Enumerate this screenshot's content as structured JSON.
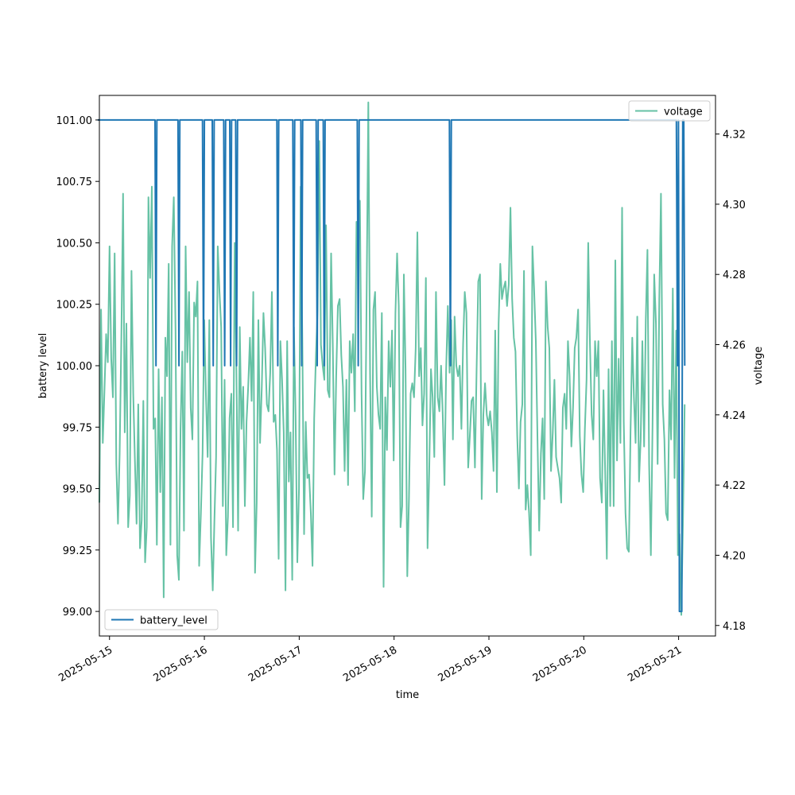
{
  "chart_data": {
    "type": "line",
    "xlabel": "time",
    "ylabel": "battery level",
    "y2label": "voltage",
    "x_range": [
      "2025-05-14T21:26:00",
      "2025-05-21T09:20:00"
    ],
    "x_ticks": [
      "2025-05-15",
      "2025-05-16",
      "2025-05-17",
      "2025-05-18",
      "2025-05-19",
      "2025-05-20",
      "2025-05-21"
    ],
    "ylim": [
      98.9,
      101.1
    ],
    "y_ticks": [
      "99.00",
      "99.25",
      "99.50",
      "99.75",
      "100.00",
      "100.25",
      "100.50",
      "100.75",
      "101.00"
    ],
    "y2lim": [
      4.177,
      4.331
    ],
    "y2_ticks": [
      "4.18",
      "4.20",
      "4.22",
      "4.24",
      "4.26",
      "4.28",
      "4.30",
      "4.32"
    ],
    "grid": false,
    "series": [
      {
        "name": "battery_level",
        "axis": "left",
        "color": "#1f77b4",
        "legend_position": "lower-left",
        "x": [
          "2025-05-14T21:00:00",
          "2025-05-15T11:31:00",
          "2025-05-15T11:45:00",
          "2025-05-15T11:59:00",
          "2025-05-15T13:29:00",
          "2025-05-15T17:20:00",
          "2025-05-15T17:34:00",
          "2025-05-15T17:48:00",
          "2025-05-15T23:32:00",
          "2025-05-15T23:47:00",
          "2025-05-16T00:01:00",
          "2025-05-16T02:00:00",
          "2025-05-16T02:14:00",
          "2025-05-16T02:29:00",
          "2025-05-16T04:54:00",
          "2025-05-16T05:08:00",
          "2025-05-16T05:23:00",
          "2025-05-16T06:25:00",
          "2025-05-16T06:39:00",
          "2025-05-16T06:53:00",
          "2025-05-16T07:55:00",
          "2025-05-16T08:09:00",
          "2025-05-16T08:24:00",
          "2025-05-16T18:21:00",
          "2025-05-16T18:35:00",
          "2025-05-16T18:49:00",
          "2025-05-16T22:23:00",
          "2025-05-16T22:37:00",
          "2025-05-16T22:52:00",
          "2025-05-17T00:24:00",
          "2025-05-17T00:38:00",
          "2025-05-17T00:52:00",
          "2025-05-17T04:18:00",
          "2025-05-17T04:33:00",
          "2025-05-17T04:47:00",
          "2025-05-17T06:05:00",
          "2025-05-17T06:19:00",
          "2025-05-17T06:33:00",
          "2025-05-17T14:42:00",
          "2025-05-17T14:56:00",
          "2025-05-17T15:10:00",
          "2025-05-18T14:00:00",
          "2025-05-18T14:15:00",
          "2025-05-18T14:29:00",
          "2025-05-20T23:26:00",
          "2025-05-20T23:42:00",
          "2025-05-20T23:57:00",
          "2025-05-21T00:12:00",
          "2025-05-21T00:48:00",
          "2025-05-21T01:03:00",
          "2025-05-21T01:18:00",
          "2025-05-21T01:33:00"
        ],
        "values": [
          101,
          101,
          100,
          101,
          101,
          101,
          100,
          101,
          101,
          100,
          101,
          101,
          100,
          101,
          101,
          100,
          101,
          101,
          100,
          101,
          101,
          100,
          101,
          101,
          100,
          101,
          101,
          100,
          101,
          101,
          100,
          101,
          101,
          100,
          101,
          101,
          100,
          101,
          101,
          100,
          101,
          101,
          100,
          101,
          101,
          100,
          101,
          99,
          99,
          101,
          101,
          100
        ]
      },
      {
        "name": "voltage",
        "axis": "right",
        "color": "#66c2a5",
        "legend_position": "upper-right",
        "x_start": "2025-05-14T21:26:00",
        "x_end": "2025-05-21T01:32:00",
        "values": [
          4.215,
          4.27,
          4.232,
          4.247,
          4.263,
          4.255,
          4.288,
          4.256,
          4.245,
          4.286,
          4.226,
          4.209,
          4.229,
          4.263,
          4.303,
          4.235,
          4.266,
          4.208,
          4.217,
          4.281,
          4.246,
          4.227,
          4.209,
          4.243,
          4.202,
          4.21,
          4.244,
          4.198,
          4.208,
          4.302,
          4.279,
          4.305,
          4.236,
          4.239,
          4.203,
          4.253,
          4.218,
          4.245,
          4.188,
          4.262,
          4.251,
          4.283,
          4.203,
          4.288,
          4.302,
          4.264,
          4.2,
          4.193,
          4.236,
          4.258,
          4.207,
          4.288,
          4.255,
          4.275,
          4.242,
          4.233,
          4.272,
          4.268,
          4.278,
          4.197,
          4.212,
          4.229,
          4.267,
          4.245,
          4.228,
          4.267,
          4.205,
          4.19,
          4.21,
          4.228,
          4.288,
          4.275,
          4.265,
          4.214,
          4.25,
          4.2,
          4.211,
          4.239,
          4.246,
          4.208,
          4.289,
          4.252,
          4.207,
          4.265,
          4.236,
          4.248,
          4.214,
          4.238,
          4.248,
          4.262,
          4.244,
          4.275,
          4.195,
          4.215,
          4.267,
          4.232,
          4.248,
          4.269,
          4.259,
          4.243,
          4.241,
          4.252,
          4.275,
          4.238,
          4.24,
          4.23,
          4.199,
          4.261,
          4.25,
          4.235,
          4.19,
          4.261,
          4.221,
          4.235,
          4.193,
          4.265,
          4.24,
          4.198,
          4.219,
          4.305,
          4.261,
          4.206,
          4.238,
          4.222,
          4.223,
          4.212,
          4.197,
          4.239,
          4.257,
          4.27,
          4.318,
          4.26,
          4.254,
          4.25,
          4.294,
          4.247,
          4.245,
          4.286,
          4.26,
          4.223,
          4.251,
          4.271,
          4.273,
          4.257,
          4.248,
          4.224,
          4.25,
          4.22,
          4.261,
          4.252,
          4.263,
          4.241,
          4.295,
          4.287,
          4.301,
          4.246,
          4.216,
          4.224,
          4.275,
          4.329,
          4.252,
          4.211,
          4.27,
          4.275,
          4.248,
          4.24,
          4.236,
          4.269,
          4.191,
          4.245,
          4.23,
          4.261,
          4.248,
          4.264,
          4.227,
          4.269,
          4.286,
          4.271,
          4.208,
          4.214,
          4.28,
          4.253,
          4.194,
          4.216,
          4.246,
          4.249,
          4.245,
          4.259,
          4.292,
          4.251,
          4.259,
          4.237,
          4.246,
          4.279,
          4.202,
          4.224,
          4.253,
          4.245,
          4.228,
          4.275,
          4.245,
          4.241,
          4.254,
          4.24,
          4.22,
          4.253,
          4.271,
          4.252,
          4.267,
          4.233,
          4.268,
          4.254,
          4.251,
          4.254,
          4.236,
          4.26,
          4.275,
          4.269,
          4.225,
          4.234,
          4.244,
          4.245,
          4.225,
          4.253,
          4.278,
          4.28,
          4.216,
          4.24,
          4.249,
          4.24,
          4.237,
          4.241,
          4.235,
          4.224,
          4.264,
          4.218,
          4.266,
          4.283,
          4.273,
          4.276,
          4.278,
          4.271,
          4.277,
          4.299,
          4.273,
          4.262,
          4.258,
          4.234,
          4.219,
          4.238,
          4.243,
          4.281,
          4.213,
          4.22,
          4.212,
          4.2,
          4.288,
          4.276,
          4.261,
          4.233,
          4.207,
          4.229,
          4.239,
          4.216,
          4.278,
          4.265,
          4.259,
          4.224,
          4.235,
          4.25,
          4.228,
          4.225,
          4.222,
          4.215,
          4.242,
          4.246,
          4.236,
          4.261,
          4.251,
          4.231,
          4.242,
          4.259,
          4.262,
          4.27,
          4.234,
          4.223,
          4.218,
          4.236,
          4.25,
          4.289,
          4.26,
          4.24,
          4.233,
          4.261,
          4.251,
          4.261,
          4.222,
          4.215,
          4.247,
          4.224,
          4.199,
          4.253,
          4.214,
          4.261,
          4.214,
          4.284,
          4.227,
          4.256,
          4.232,
          4.299,
          4.238,
          4.212,
          4.202,
          4.201,
          4.235,
          4.262,
          4.245,
          4.232,
          4.268,
          4.221,
          4.233,
          4.261,
          4.231,
          4.267,
          4.287,
          4.226,
          4.2,
          4.237,
          4.28,
          4.266,
          4.226,
          4.273,
          4.303,
          4.243,
          4.233,
          4.212,
          4.21,
          4.247,
          4.233,
          4.276,
          4.222,
          4.264,
          4.2,
          4.206,
          4.183,
          4.21,
          4.243
        ]
      }
    ]
  }
}
